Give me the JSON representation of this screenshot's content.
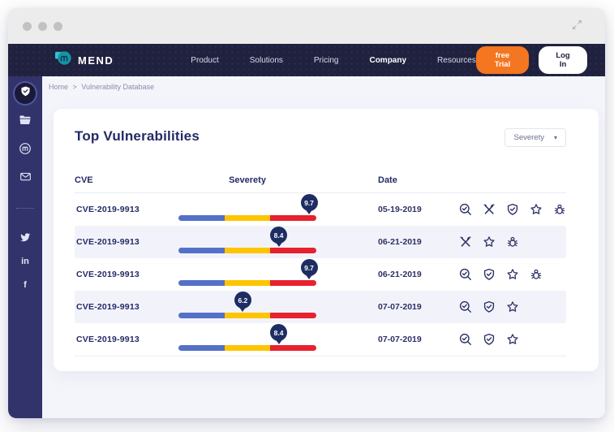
{
  "window": {
    "traffic_dots": 3,
    "expand_icon": "diagonal-resize-icon"
  },
  "navbar": {
    "brand": "MEND",
    "links": [
      {
        "label": "Product",
        "active": false
      },
      {
        "label": "Solutions",
        "active": false
      },
      {
        "label": "Pricing",
        "active": false
      },
      {
        "label": "Company",
        "active": true
      },
      {
        "label": "Resources",
        "active": false
      }
    ],
    "free_trial_label": "free Trial",
    "login_label": "Log In"
  },
  "sidebar": {
    "nav_icons": [
      "shield-check",
      "folder",
      "mend-logo",
      "mail"
    ],
    "active_icon": "shield-check",
    "social_icons": [
      "twitter",
      "linkedin",
      "facebook"
    ],
    "linkedin_text": "in",
    "facebook_text": "f"
  },
  "breadcrumb": {
    "items": [
      "Home",
      "Vulnerability Database"
    ],
    "separator": ">"
  },
  "page": {
    "title": "Top Vulnerabilities",
    "filter_dropdown": {
      "value": "Severety"
    },
    "table": {
      "columns": [
        "CVE",
        "Severety",
        "Date"
      ],
      "rows": [
        {
          "cve": "CVE-2019-9913",
          "severity": "9.7",
          "severity_pct": 95,
          "date": "05-19-2019",
          "actions": [
            "search-check",
            "tools",
            "shield-check",
            "star",
            "bug"
          ]
        },
        {
          "cve": "CVE-2019-9913",
          "severity": "8.4",
          "severity_pct": 73,
          "date": "06-21-2019",
          "actions": [
            "tools",
            "star",
            "bug"
          ]
        },
        {
          "cve": "CVE-2019-9913",
          "severity": "9.7",
          "severity_pct": 95,
          "date": "06-21-2019",
          "actions": [
            "search-check",
            "shield-check",
            "star",
            "bug"
          ]
        },
        {
          "cve": "CVE-2019-9913",
          "severity": "6.2",
          "severity_pct": 47,
          "date": "07-07-2019",
          "actions": [
            "search-check",
            "shield-check",
            "star"
          ]
        },
        {
          "cve": "CVE-2019-9913",
          "severity": "8.4",
          "severity_pct": 73,
          "date": "07-07-2019",
          "actions": [
            "search-check",
            "shield-check",
            "star"
          ]
        }
      ]
    }
  },
  "colors": {
    "navbar_bg": "#20213f",
    "sidebar_bg": "#32336b",
    "accent_orange": "#f47621",
    "severity_low": "#5471c7",
    "severity_medium": "#fdc500",
    "severity_high": "#e8212e",
    "pin_bg": "#1d2d63",
    "page_bg": "#f4f5fb",
    "text_navy": "#232b66",
    "logo_teal": "#1693a5"
  }
}
